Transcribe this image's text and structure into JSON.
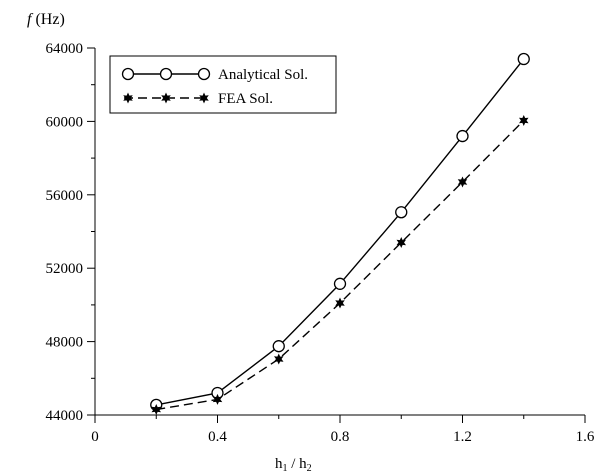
{
  "chart_data": {
    "type": "line",
    "title": "",
    "ylabel": "f (Hz)",
    "ylabel_italic": "f",
    "ylabel_unit": "(Hz)",
    "xlabel": "h1 / h2",
    "xlim": [
      0,
      1.6
    ],
    "ylim": [
      44000,
      64000
    ],
    "xticks": [
      0,
      0.4,
      0.8,
      1.2,
      1.6
    ],
    "xtick_labels": [
      "0",
      "0.4",
      "0.8",
      "1.2",
      "1.6"
    ],
    "yticks": [
      44000,
      48000,
      52000,
      56000,
      60000,
      64000
    ],
    "ytick_labels": [
      "44000",
      "48000",
      "52000",
      "56000",
      "60000",
      "64000"
    ],
    "grid": false,
    "legend_position": "top-left",
    "x": [
      0.2,
      0.4,
      0.6,
      0.8,
      1.0,
      1.2,
      1.4
    ],
    "series": [
      {
        "name": "Analytical Sol.",
        "values": [
          44550,
          45200,
          47750,
          51150,
          55050,
          59200,
          63400
        ],
        "marker": "open-circle",
        "line": "solid",
        "color": "#000000"
      },
      {
        "name": "FEA Sol.",
        "values": [
          44300,
          44850,
          47050,
          50100,
          53400,
          56700,
          60050
        ],
        "marker": "star",
        "line": "dashed",
        "color": "#000000"
      }
    ]
  }
}
